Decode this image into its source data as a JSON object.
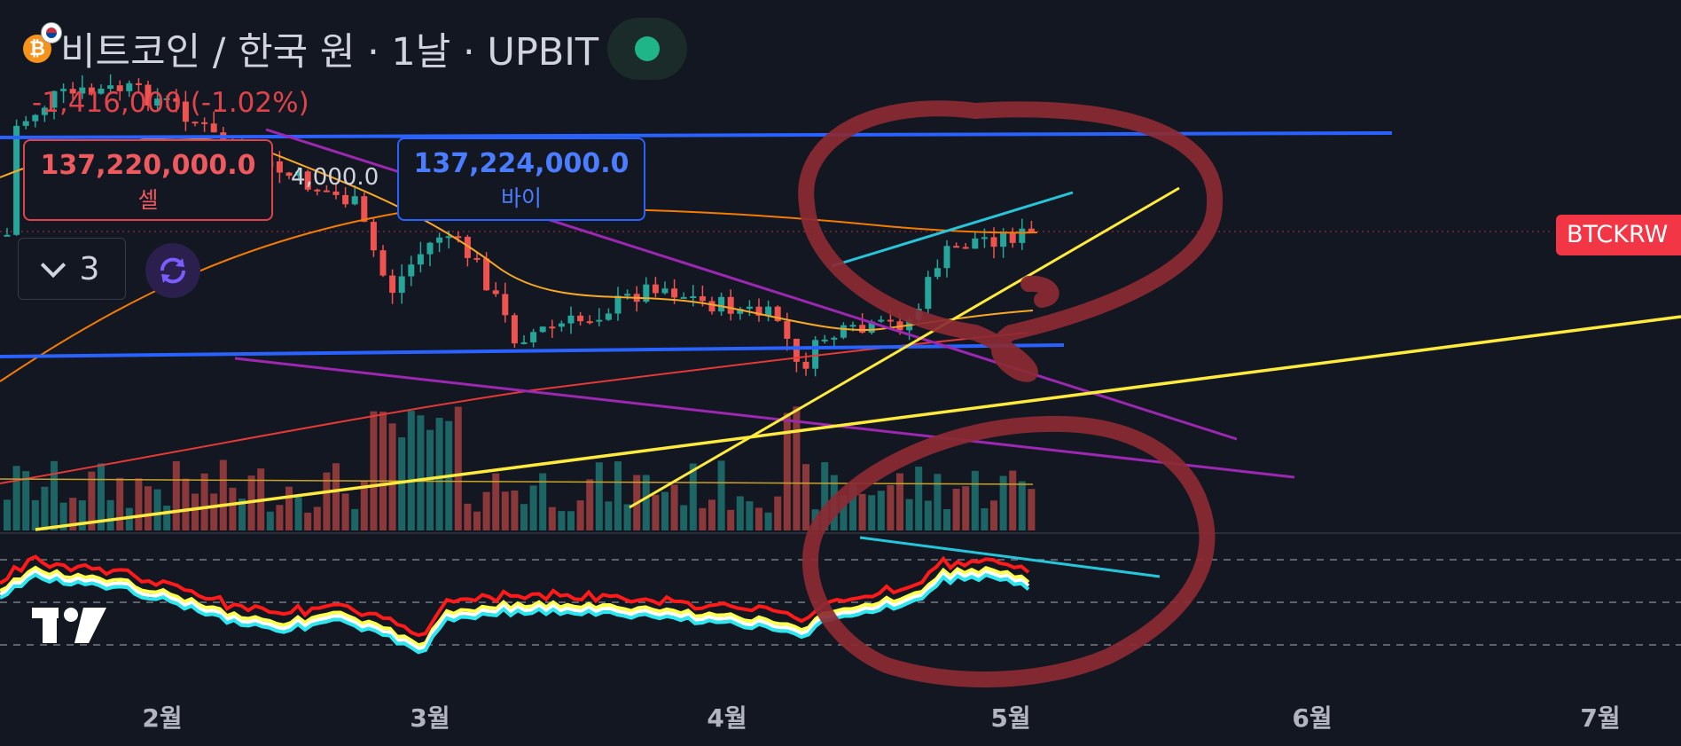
{
  "header": {
    "title": "비트코인 / 한국 원 · 1날 · UPBIT",
    "coin_icon": "bitcoin-icon",
    "flag_icon": "korea-flag-icon",
    "live_icon": "market-open-dot-icon"
  },
  "change": "-1,416,000 (-1.02%)",
  "sell": {
    "price": "137,220,000.0",
    "label": "셀"
  },
  "buy": {
    "price": "137,224,000.0",
    "label": "바이"
  },
  "spread": "4,000.0",
  "indicators_toggle": {
    "count": "3",
    "icon": "chevron-down-icon"
  },
  "sync_icon": "sync-icon",
  "ticker_tag": "BTCKRW",
  "logo": "tradingview-logo",
  "months": [
    "2월",
    "3월",
    "4월",
    "5월",
    "6월",
    "7월"
  ],
  "colors": {
    "background": "#131722",
    "up": "#26a69a",
    "down": "#ef5350",
    "blue_line": "#2962ff",
    "yellow_line": "#ffeb3b",
    "purple_line": "#9c27b0",
    "cyan_line": "#26c6da",
    "annotation": "#8b2a33"
  }
}
